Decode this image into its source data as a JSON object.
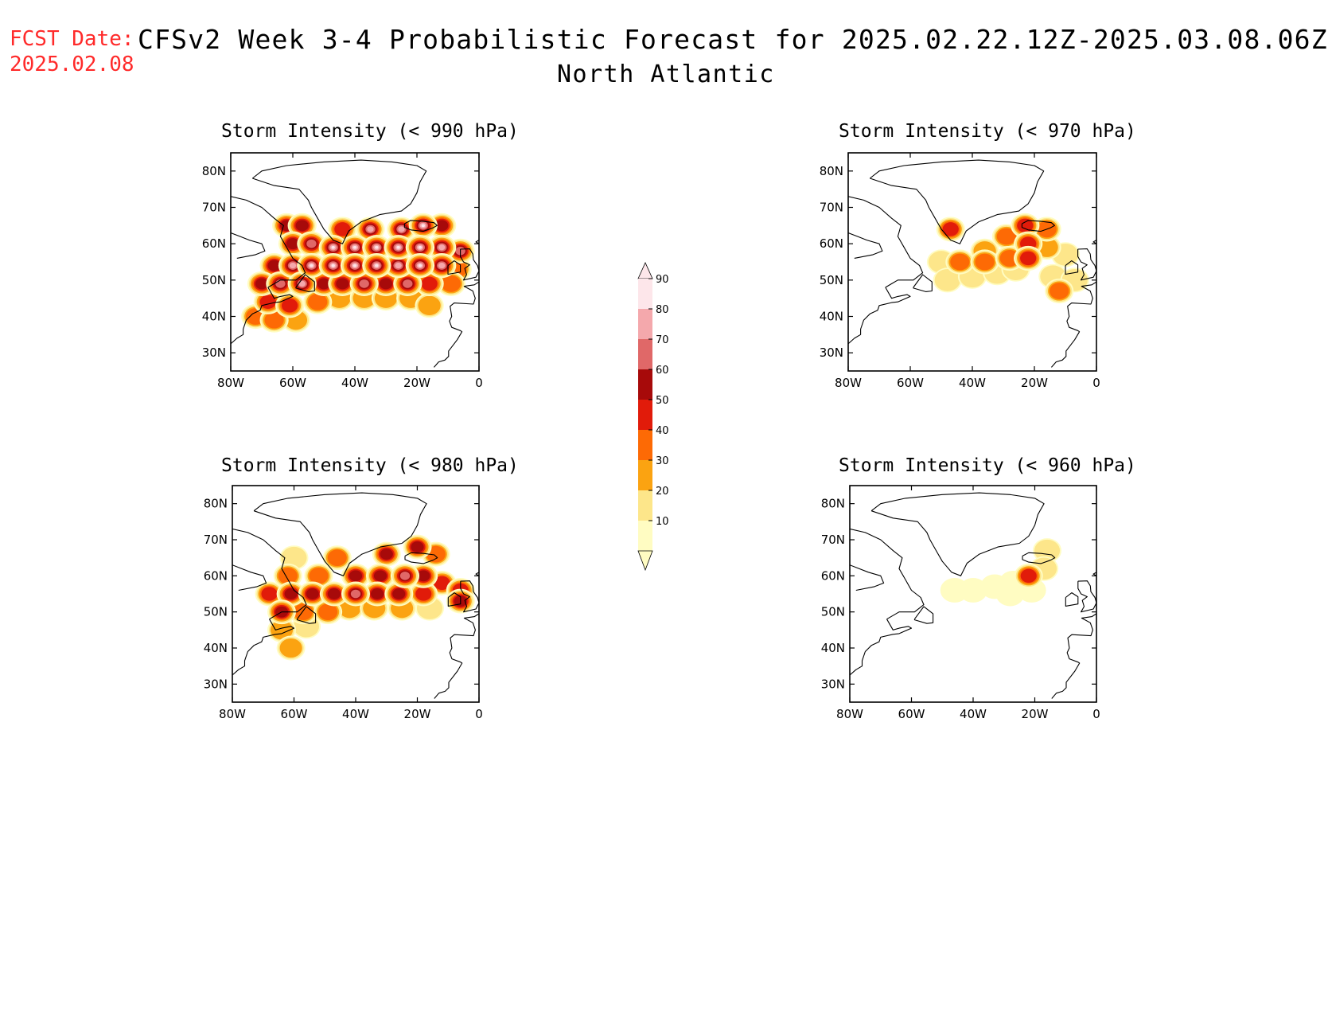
{
  "header": {
    "fcst_label": "FCST Date:",
    "fcst_date": "2025.02.08",
    "title": "CFSv2 Week 3-4 Probabilistic Forecast for 2025.02.22.12Z-2025.03.08.06Z",
    "region": "North Atlantic",
    "label_color": "#ff2a2a"
  },
  "axes": {
    "lat_ticks": [
      "80N",
      "70N",
      "60N",
      "50N",
      "40N",
      "30N"
    ],
    "lon_ticks": [
      "80W",
      "60W",
      "40W",
      "20W",
      "0"
    ],
    "lat_values": [
      80,
      70,
      60,
      50,
      40,
      30
    ],
    "lon_values": [
      -80,
      -60,
      -40,
      -20,
      0
    ],
    "lat_range": [
      25,
      85
    ],
    "lon_range": [
      -80,
      0
    ]
  },
  "colorbar": {
    "levels": [
      "10",
      "20",
      "30",
      "40",
      "50",
      "60",
      "70",
      "80",
      "90"
    ],
    "colors": [
      "#fffcc2",
      "#fde68a",
      "#fba311",
      "#fd6a05",
      "#e11b0a",
      "#a70a0a",
      "#e06868",
      "#f4a8ac",
      "#fde6ea"
    ]
  },
  "panels": [
    {
      "title": "Storm Intensity (< 990 hPa)",
      "max_level": 9,
      "cells": [
        {
          "lon": -62,
          "lat": 65,
          "lvl": 6
        },
        {
          "lon": -57,
          "lat": 65,
          "lvl": 6
        },
        {
          "lon": -44,
          "lat": 64,
          "lvl": 5
        },
        {
          "lon": -35,
          "lat": 64,
          "lvl": 8
        },
        {
          "lon": -25,
          "lat": 64,
          "lvl": 8
        },
        {
          "lon": -18,
          "lat": 65,
          "lvl": 9
        },
        {
          "lon": -12,
          "lat": 65,
          "lvl": 6
        },
        {
          "lon": -60,
          "lat": 60,
          "lvl": 6
        },
        {
          "lon": -54,
          "lat": 60,
          "lvl": 7
        },
        {
          "lon": -47,
          "lat": 59,
          "lvl": 9
        },
        {
          "lon": -40,
          "lat": 59,
          "lvl": 9
        },
        {
          "lon": -33,
          "lat": 59,
          "lvl": 9
        },
        {
          "lon": -26,
          "lat": 59,
          "lvl": 9
        },
        {
          "lon": -19,
          "lat": 59,
          "lvl": 9
        },
        {
          "lon": -12,
          "lat": 59,
          "lvl": 8
        },
        {
          "lon": -6,
          "lat": 58,
          "lvl": 7
        },
        {
          "lon": -66,
          "lat": 54,
          "lvl": 6
        },
        {
          "lon": -60,
          "lat": 54,
          "lvl": 8
        },
        {
          "lon": -54,
          "lat": 54,
          "lvl": 9
        },
        {
          "lon": -47,
          "lat": 54,
          "lvl": 9
        },
        {
          "lon": -40,
          "lat": 54,
          "lvl": 9
        },
        {
          "lon": -33,
          "lat": 54,
          "lvl": 9
        },
        {
          "lon": -26,
          "lat": 54,
          "lvl": 8
        },
        {
          "lon": -19,
          "lat": 54,
          "lvl": 9
        },
        {
          "lon": -12,
          "lat": 54,
          "lvl": 8
        },
        {
          "lon": -7,
          "lat": 53,
          "lvl": 4
        },
        {
          "lon": -70,
          "lat": 49,
          "lvl": 6
        },
        {
          "lon": -64,
          "lat": 49,
          "lvl": 7
        },
        {
          "lon": -57,
          "lat": 49,
          "lvl": 8
        },
        {
          "lon": -50,
          "lat": 49,
          "lvl": 6
        },
        {
          "lon": -44,
          "lat": 49,
          "lvl": 6
        },
        {
          "lon": -37,
          "lat": 49,
          "lvl": 7
        },
        {
          "lon": -30,
          "lat": 49,
          "lvl": 6
        },
        {
          "lon": -23,
          "lat": 49,
          "lvl": 7
        },
        {
          "lon": -16,
          "lat": 49,
          "lvl": 5
        },
        {
          "lon": -9,
          "lat": 49,
          "lvl": 4
        },
        {
          "lon": -68,
          "lat": 44,
          "lvl": 5
        },
        {
          "lon": -61,
          "lat": 43,
          "lvl": 5
        },
        {
          "lon": -52,
          "lat": 44,
          "lvl": 4
        },
        {
          "lon": -45,
          "lat": 45,
          "lvl": 3
        },
        {
          "lon": -37,
          "lat": 45,
          "lvl": 3
        },
        {
          "lon": -30,
          "lat": 45,
          "lvl": 3
        },
        {
          "lon": -22,
          "lat": 45,
          "lvl": 3
        },
        {
          "lon": -16,
          "lat": 43,
          "lvl": 3
        },
        {
          "lon": -72,
          "lat": 40,
          "lvl": 4
        },
        {
          "lon": -66,
          "lat": 39,
          "lvl": 4
        },
        {
          "lon": -59,
          "lat": 39,
          "lvl": 3
        }
      ]
    },
    {
      "title": "Storm Intensity (< 970 hPa)",
      "max_level": 5,
      "cells": [
        {
          "lon": -47,
          "lat": 64,
          "lvl": 5
        },
        {
          "lon": -23,
          "lat": 65,
          "lvl": 5
        },
        {
          "lon": -16,
          "lat": 64,
          "lvl": 4
        },
        {
          "lon": -29,
          "lat": 62,
          "lvl": 4
        },
        {
          "lon": -22,
          "lat": 60,
          "lvl": 5
        },
        {
          "lon": -16,
          "lat": 59,
          "lvl": 3
        },
        {
          "lon": -36,
          "lat": 58,
          "lvl": 3
        },
        {
          "lon": -44,
          "lat": 55,
          "lvl": 4
        },
        {
          "lon": -36,
          "lat": 55,
          "lvl": 4
        },
        {
          "lon": -28,
          "lat": 56,
          "lvl": 4
        },
        {
          "lon": -22,
          "lat": 56,
          "lvl": 5
        },
        {
          "lon": -50,
          "lat": 55,
          "lvl": 2
        },
        {
          "lon": -10,
          "lat": 57,
          "lvl": 2
        },
        {
          "lon": -48,
          "lat": 50,
          "lvl": 2
        },
        {
          "lon": -40,
          "lat": 51,
          "lvl": 2
        },
        {
          "lon": -32,
          "lat": 52,
          "lvl": 2
        },
        {
          "lon": -26,
          "lat": 53,
          "lvl": 2
        },
        {
          "lon": -14,
          "lat": 51,
          "lvl": 2
        },
        {
          "lon": -12,
          "lat": 47,
          "lvl": 4
        },
        {
          "lon": -7,
          "lat": 50,
          "lvl": 2
        }
      ]
    },
    {
      "title": "Storm Intensity (< 980 hPa)",
      "max_level": 8,
      "cells": [
        {
          "lon": -60,
          "lat": 65,
          "lvl": 2
        },
        {
          "lon": -46,
          "lat": 65,
          "lvl": 4
        },
        {
          "lon": -30,
          "lat": 66,
          "lvl": 6
        },
        {
          "lon": -20,
          "lat": 68,
          "lvl": 6
        },
        {
          "lon": -14,
          "lat": 66,
          "lvl": 4
        },
        {
          "lon": -62,
          "lat": 60,
          "lvl": 4
        },
        {
          "lon": -52,
          "lat": 60,
          "lvl": 4
        },
        {
          "lon": -40,
          "lat": 60,
          "lvl": 6
        },
        {
          "lon": -32,
          "lat": 60,
          "lvl": 6
        },
        {
          "lon": -24,
          "lat": 60,
          "lvl": 7
        },
        {
          "lon": -18,
          "lat": 60,
          "lvl": 6
        },
        {
          "lon": -12,
          "lat": 58,
          "lvl": 5
        },
        {
          "lon": -6,
          "lat": 56,
          "lvl": 5
        },
        {
          "lon": -68,
          "lat": 55,
          "lvl": 5
        },
        {
          "lon": -61,
          "lat": 55,
          "lvl": 6
        },
        {
          "lon": -54,
          "lat": 55,
          "lvl": 6
        },
        {
          "lon": -47,
          "lat": 55,
          "lvl": 6
        },
        {
          "lon": -40,
          "lat": 55,
          "lvl": 7
        },
        {
          "lon": -33,
          "lat": 55,
          "lvl": 6
        },
        {
          "lon": -26,
          "lat": 55,
          "lvl": 6
        },
        {
          "lon": -18,
          "lat": 55,
          "lvl": 5
        },
        {
          "lon": -6,
          "lat": 53,
          "lvl": 6
        },
        {
          "lon": -64,
          "lat": 50,
          "lvl": 6
        },
        {
          "lon": -57,
          "lat": 50,
          "lvl": 4
        },
        {
          "lon": -49,
          "lat": 50,
          "lvl": 4
        },
        {
          "lon": -42,
          "lat": 51,
          "lvl": 3
        },
        {
          "lon": -34,
          "lat": 51,
          "lvl": 3
        },
        {
          "lon": -25,
          "lat": 51,
          "lvl": 3
        },
        {
          "lon": -16,
          "lat": 51,
          "lvl": 2
        },
        {
          "lon": -64,
          "lat": 45,
          "lvl": 3
        },
        {
          "lon": -56,
          "lat": 46,
          "lvl": 2
        },
        {
          "lon": -61,
          "lat": 40,
          "lvl": 3
        }
      ]
    },
    {
      "title": "Storm Intensity (< 960 hPa)",
      "max_level": 5,
      "cells": [
        {
          "lon": -16,
          "lat": 67,
          "lvl": 2
        },
        {
          "lon": -22,
          "lat": 60,
          "lvl": 5
        },
        {
          "lon": -17,
          "lat": 62,
          "lvl": 2
        },
        {
          "lon": -27,
          "lat": 58,
          "lvl": 1
        },
        {
          "lon": -33,
          "lat": 57,
          "lvl": 1
        },
        {
          "lon": -40,
          "lat": 56,
          "lvl": 1
        },
        {
          "lon": -46,
          "lat": 56,
          "lvl": 1
        },
        {
          "lon": -28,
          "lat": 55,
          "lvl": 1
        },
        {
          "lon": -21,
          "lat": 56,
          "lvl": 1
        }
      ]
    }
  ]
}
